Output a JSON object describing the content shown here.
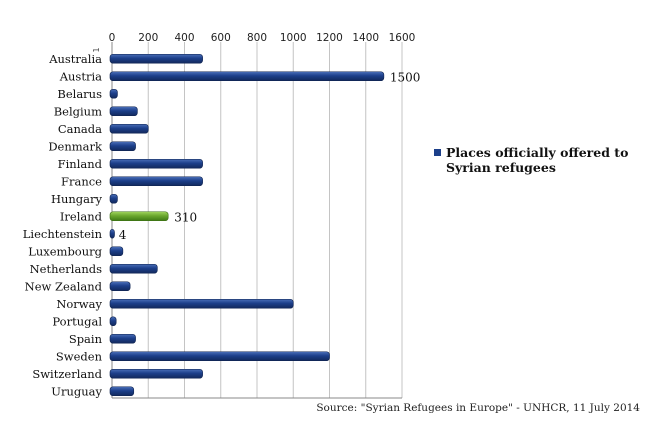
{
  "chart_data": {
    "type": "bar",
    "orientation": "horizontal",
    "categories": [
      "Australia",
      "Austria",
      "Belarus",
      "Belgium",
      "Canada",
      "Denmark",
      "Finland",
      "France",
      "Hungary",
      "Ireland",
      "Liechtenstein",
      "Luxembourg",
      "Netherlands",
      "New Zealand",
      "Norway",
      "Portugal",
      "Spain",
      "Sweden",
      "Switzerland",
      "Uruguay"
    ],
    "series": [
      {
        "name": "Places officially offered to Syrian refugees",
        "values": [
          500,
          1500,
          30,
          140,
          200,
          130,
          500,
          500,
          30,
          310,
          4,
          60,
          250,
          100,
          1000,
          23,
          130,
          1200,
          500,
          120
        ]
      }
    ],
    "highlight_index": 9,
    "data_labels": [
      {
        "index": 1,
        "text": "1500"
      },
      {
        "index": 9,
        "text": "310"
      },
      {
        "index": 10,
        "text": "4"
      }
    ],
    "xlim": [
      0,
      1600
    ],
    "xticks": [
      "0",
      "200",
      "400",
      "600",
      "800",
      "1000",
      "1200",
      "1400",
      "1600"
    ],
    "x_axis_position": "top",
    "corner_label": "1",
    "grid": true,
    "legend_position": "right",
    "colors": {
      "bar": "#1c3f8a",
      "highlight": "#6aa72e",
      "grid": "#c4c4c4",
      "axis": "#888888"
    }
  },
  "legend": {
    "text": "Places officially offered to Syrian refugees"
  },
  "source": "Source: \"Syrian Refugees in Europe\" - UNHCR, 11 July 2014"
}
